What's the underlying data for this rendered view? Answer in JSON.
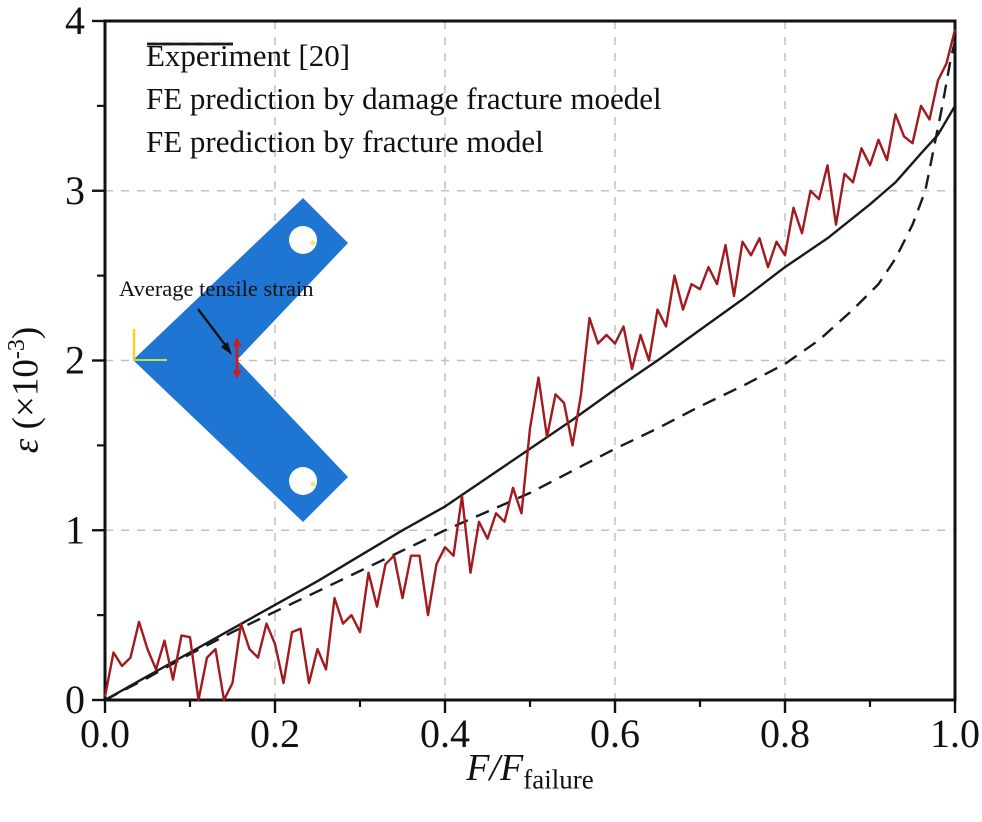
{
  "axes": {
    "x": {
      "label_main": "F/F",
      "label_sub": "failure",
      "ticks": [
        "0.0",
        "0.2",
        "0.4",
        "0.6",
        "0.8",
        "1.0"
      ],
      "tick_values": [
        0,
        0.2,
        0.4,
        0.6,
        0.8,
        1.0
      ]
    },
    "y": {
      "label_symbol": "ε",
      "label_pre": " (×10",
      "label_sup": "-3",
      "label_post": ")",
      "ticks": [
        "0",
        "1",
        "2",
        "3",
        "4"
      ],
      "tick_values": [
        0,
        1,
        2,
        3,
        4
      ]
    }
  },
  "inset": {
    "annotation": "Average tensile strain",
    "specimen_color": "#1E76D2"
  },
  "chart_data": {
    "type": "line",
    "title": "",
    "xlabel": "F/F_failure",
    "ylabel": "ε (×10⁻³)",
    "xlim": [
      0,
      1
    ],
    "ylim": [
      0,
      4
    ],
    "grid": true,
    "grid_x": [
      0.2,
      0.4,
      0.6,
      0.8
    ],
    "grid_y": [
      1,
      2,
      3
    ],
    "legend_position": "top-left",
    "series": [
      {
        "name": "Experiment [20]",
        "color": "#A21A1D",
        "line_style": "solid",
        "x": [
          0,
          0.01,
          0.02,
          0.03,
          0.04,
          0.05,
          0.06,
          0.07,
          0.08,
          0.09,
          0.1,
          0.11,
          0.12,
          0.13,
          0.14,
          0.15,
          0.16,
          0.17,
          0.18,
          0.19,
          0.2,
          0.21,
          0.22,
          0.23,
          0.24,
          0.25,
          0.26,
          0.27,
          0.28,
          0.29,
          0.3,
          0.31,
          0.32,
          0.33,
          0.34,
          0.35,
          0.36,
          0.37,
          0.38,
          0.39,
          0.4,
          0.41,
          0.42,
          0.43,
          0.44,
          0.45,
          0.46,
          0.47,
          0.48,
          0.49,
          0.5,
          0.51,
          0.52,
          0.53,
          0.54,
          0.55,
          0.56,
          0.57,
          0.58,
          0.59,
          0.6,
          0.61,
          0.62,
          0.63,
          0.64,
          0.65,
          0.66,
          0.67,
          0.68,
          0.69,
          0.7,
          0.71,
          0.72,
          0.73,
          0.74,
          0.75,
          0.76,
          0.77,
          0.78,
          0.79,
          0.8,
          0.81,
          0.82,
          0.83,
          0.84,
          0.85,
          0.86,
          0.87,
          0.88,
          0.89,
          0.9,
          0.91,
          0.92,
          0.93,
          0.94,
          0.95,
          0.96,
          0.97,
          0.98,
          0.99,
          1.0
        ],
        "y": [
          0.02,
          0.28,
          0.2,
          0.25,
          0.46,
          0.3,
          0.18,
          0.35,
          0.12,
          0.38,
          0.37,
          0.0,
          0.25,
          0.3,
          0.0,
          0.1,
          0.45,
          0.3,
          0.25,
          0.45,
          0.33,
          0.1,
          0.4,
          0.42,
          0.1,
          0.3,
          0.18,
          0.6,
          0.45,
          0.5,
          0.4,
          0.75,
          0.55,
          0.8,
          0.85,
          0.6,
          0.85,
          0.85,
          0.5,
          0.8,
          0.9,
          0.85,
          1.2,
          0.75,
          1.05,
          0.95,
          1.1,
          1.05,
          1.25,
          1.1,
          1.6,
          1.9,
          1.55,
          1.8,
          1.75,
          1.5,
          1.8,
          2.25,
          2.1,
          2.15,
          2.1,
          2.2,
          1.95,
          2.15,
          2.0,
          2.3,
          2.2,
          2.5,
          2.3,
          2.45,
          2.42,
          2.55,
          2.45,
          2.68,
          2.38,
          2.7,
          2.62,
          2.72,
          2.55,
          2.7,
          2.62,
          2.9,
          2.75,
          3.0,
          2.95,
          3.15,
          2.8,
          3.1,
          3.05,
          3.25,
          3.15,
          3.3,
          3.18,
          3.45,
          3.32,
          3.28,
          3.5,
          3.42,
          3.65,
          3.75,
          3.95
        ]
      },
      {
        "name": "FE prediction by damage fracture moedel",
        "color": "#1a1a1a",
        "line_style": "solid",
        "x": [
          0,
          0.05,
          0.1,
          0.15,
          0.2,
          0.25,
          0.3,
          0.35,
          0.4,
          0.45,
          0.5,
          0.55,
          0.6,
          0.65,
          0.7,
          0.75,
          0.8,
          0.85,
          0.9,
          0.93,
          0.96,
          0.98,
          1.0
        ],
        "y": [
          0,
          0.14,
          0.28,
          0.42,
          0.56,
          0.7,
          0.85,
          1.0,
          1.14,
          1.31,
          1.48,
          1.65,
          1.83,
          2.0,
          2.18,
          2.36,
          2.55,
          2.72,
          2.92,
          3.05,
          3.22,
          3.33,
          3.5
        ]
      },
      {
        "name": "FE prediction by fracture model",
        "color": "#1a1a1a",
        "line_style": "dashed",
        "x": [
          0,
          0.05,
          0.1,
          0.15,
          0.2,
          0.25,
          0.3,
          0.35,
          0.4,
          0.45,
          0.5,
          0.55,
          0.6,
          0.65,
          0.7,
          0.75,
          0.8,
          0.84,
          0.88,
          0.91,
          0.93,
          0.95,
          0.965,
          0.975,
          0.985,
          0.995,
          1.0
        ],
        "y": [
          0,
          0.13,
          0.27,
          0.4,
          0.52,
          0.64,
          0.76,
          0.88,
          1.0,
          1.11,
          1.22,
          1.35,
          1.48,
          1.6,
          1.73,
          1.85,
          1.98,
          2.12,
          2.3,
          2.45,
          2.6,
          2.8,
          3.0,
          3.25,
          3.5,
          3.78,
          3.88
        ]
      }
    ]
  }
}
